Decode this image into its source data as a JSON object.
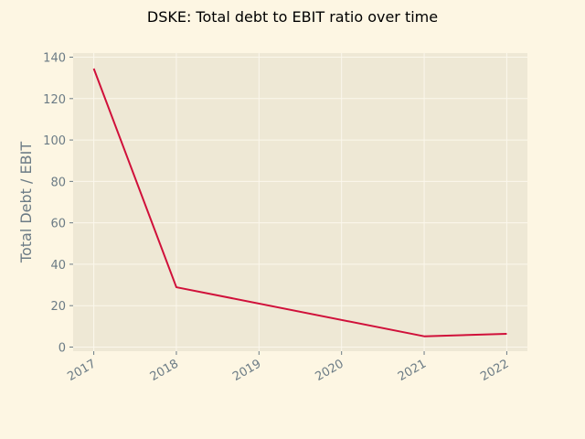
{
  "chart_data": {
    "type": "line",
    "title": "DSKE: Total debt to EBIT ratio over time",
    "xlabel": "",
    "ylabel": "Total Debt / EBIT",
    "categories": [
      "2017",
      "2018",
      "2019",
      "2020",
      "2021",
      "2022"
    ],
    "x": [
      2017,
      2018,
      2021,
      2022
    ],
    "values": [
      134.5,
      28.9,
      5.2,
      6.4
    ],
    "ylim": [
      0,
      140
    ],
    "yticks": [
      0,
      20,
      40,
      60,
      80,
      100,
      120,
      140
    ],
    "grid": true,
    "legend": "none"
  },
  "colors": {
    "background": "#fdf6e3",
    "plot_background": "#eee8d5",
    "grid": "#fbf7ec",
    "line": "#d0103a",
    "text": "#6b7b85",
    "tick_mark": "#6b7b85"
  }
}
